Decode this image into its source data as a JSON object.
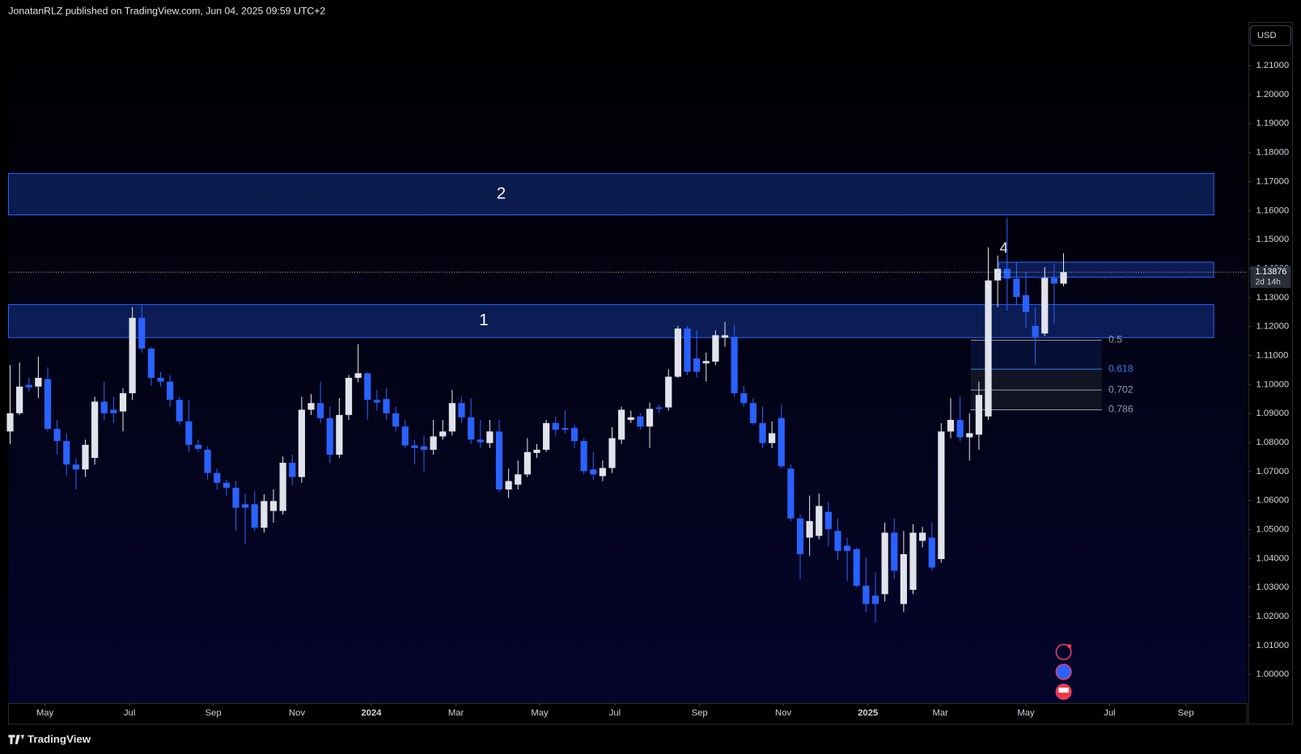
{
  "header": {
    "publisher": "JonatanRLZ published on TradingView.com, Jun 04, 2025 09:59 UTC+2"
  },
  "footer": {
    "brand": "TradingView"
  },
  "chart_data": {
    "type": "candlestick",
    "currency": "USD",
    "up_color": "#e0e3eb",
    "down_color": "#2962ff",
    "open": [
      1.0838,
      1.0901,
      1.0999,
      1.0993,
      1.1019,
      1.0847,
      1.0805,
      1.0724,
      1.0707,
      1.0747,
      1.0941,
      1.0913,
      1.0907,
      1.097,
      1.123,
      1.1124,
      1.1023,
      1.101,
      1.0947,
      1.0873,
      1.0792,
      1.0775,
      1.0695,
      1.0661,
      1.0644,
      1.0587,
      1.0587,
      1.0506,
      1.0564,
      1.0564,
      1.073,
      1.0681,
      1.0913,
      1.0936,
      1.0884,
      1.0758,
      1.0895,
      1.1023,
      1.1039,
      1.0947,
      1.095,
      1.0901,
      1.0855,
      1.079,
      1.0787,
      1.0775,
      1.0821,
      1.0838,
      1.0936,
      1.0887,
      1.081,
      1.0798,
      1.0838,
      1.0638,
      1.0655,
      1.069,
      1.0764,
      1.0775,
      1.0867,
      1.085,
      1.085,
      1.0805,
      1.0707,
      1.0684,
      1.0712,
      1.081,
      1.0878,
      1.089,
      1.0855,
      1.0921,
      1.0921,
      1.1027,
      1.1193,
      1.109,
      1.1073,
      1.1079,
      1.1162,
      1.1164,
      1.097,
      1.0936,
      1.0867,
      1.0798,
      1.0884,
      1.071,
      1.0538,
      1.0472,
      1.0478,
      1.0561,
      1.0495,
      1.0444,
      1.0432,
      1.0306,
      1.0272,
      1.0277,
      1.0489,
      1.0243,
      1.0292,
      1.0461,
      1.0472,
      1.0398,
      1.0838,
      1.0878,
      1.0818,
      1.0827,
      1.089,
      1.1359,
      1.1399,
      1.1365,
      1.1308,
      1.1202,
      1.1176,
      1.1368,
      1.1348
    ],
    "high": [
      1.1067,
      1.1076,
      1.1024,
      1.1096,
      1.1059,
      1.0878,
      1.0832,
      1.0747,
      1.081,
      1.0958,
      1.101,
      1.0958,
      1.0987,
      1.1267,
      1.1276,
      1.113,
      1.1044,
      1.1033,
      1.0958,
      1.0947,
      1.081,
      1.0787,
      1.071,
      1.0672,
      1.0667,
      1.0624,
      1.0632,
      1.0621,
      1.0638,
      1.0752,
      1.0758,
      1.0958,
      1.0967,
      1.101,
      1.0924,
      1.0953,
      1.1033,
      1.1139,
      1.1044,
      1.0981,
      1.0987,
      1.0924,
      1.0878,
      1.081,
      1.0824,
      1.0878,
      1.0878,
      1.0981,
      1.0958,
      1.0953,
      1.0878,
      1.0878,
      1.0878,
      1.071,
      1.0738,
      1.0815,
      1.0795,
      1.0878,
      1.089,
      1.091,
      1.0861,
      1.0815,
      1.0767,
      1.0738,
      1.0853,
      1.0924,
      1.091,
      1.0901,
      1.0938,
      1.093,
      1.1053,
      1.1202,
      1.1202,
      1.1187,
      1.111,
      1.1187,
      1.1216,
      1.1205,
      1.0996,
      1.0953,
      1.0924,
      1.0873,
      1.093,
      1.0724,
      1.0552,
      1.0617,
      1.0624,
      1.0595,
      1.0538,
      1.0472,
      1.0438,
      1.0403,
      1.0352,
      1.0524,
      1.0538,
      1.0495,
      1.0518,
      1.0509,
      1.0524,
      1.0867,
      1.0953,
      1.0958,
      1.0901,
      1.101,
      1.1473,
      1.1445,
      1.1574,
      1.1422,
      1.1388,
      1.1267,
      1.1405,
      1.1416,
      1.1453
    ],
    "low": [
      1.0795,
      1.0895,
      1.0976,
      1.0953,
      1.0838,
      1.0758,
      1.0684,
      1.0638,
      1.0681,
      1.0724,
      1.0878,
      1.0867,
      1.0838,
      1.0947,
      1.111,
      1.0996,
      1.0993,
      1.0924,
      1.0861,
      1.0767,
      1.0767,
      1.0672,
      1.0638,
      1.0617,
      1.0495,
      1.0449,
      1.0495,
      1.0489,
      1.0524,
      1.0552,
      1.0652,
      1.0661,
      1.0895,
      1.0867,
      1.073,
      1.0747,
      1.0878,
      1.1008,
      1.0878,
      1.091,
      1.0878,
      1.0838,
      1.0781,
      1.0724,
      1.0701,
      1.0758,
      1.081,
      1.0824,
      1.0867,
      1.0795,
      1.0781,
      1.0781,
      1.0629,
      1.0609,
      1.0638,
      1.0681,
      1.0747,
      1.0767,
      1.0824,
      1.0832,
      1.0781,
      1.069,
      1.0672,
      1.0667,
      1.0695,
      1.0795,
      1.0867,
      1.0844,
      1.0781,
      1.0901,
      1.091,
      1.1023,
      1.1033,
      1.1024,
      1.101,
      1.1067,
      1.113,
      1.0958,
      1.0924,
      1.0861,
      1.0781,
      1.0781,
      1.071,
      1.0529,
      1.0329,
      1.0409,
      1.0466,
      1.0444,
      1.0395,
      1.0323,
      1.03,
      1.0215,
      1.018,
      1.0252,
      1.0329,
      1.0215,
      1.0277,
      1.0438,
      1.0358,
      1.0386,
      1.0815,
      1.0805,
      1.0738,
      1.0775,
      1.0878,
      1.1267,
      1.1255,
      1.1273,
      1.1196,
      1.1067,
      1.1167,
      1.121,
      1.1339
    ],
    "close": [
      1.0901,
      1.0993,
      1.099,
      1.1023,
      1.0847,
      1.0805,
      1.0724,
      1.0707,
      1.0792,
      1.0941,
      1.0901,
      1.0901,
      1.097,
      1.123,
      1.1124,
      1.1023,
      1.101,
      1.0947,
      1.0873,
      1.0792,
      1.0778,
      1.0695,
      1.0661,
      1.0644,
      1.0575,
      1.0575,
      1.0506,
      1.0598,
      1.0598,
      1.073,
      1.0681,
      1.0913,
      1.0936,
      1.0884,
      1.0758,
      1.0895,
      1.1023,
      1.1039,
      1.0947,
      1.0938,
      1.0901,
      1.0855,
      1.079,
      1.0781,
      1.0775,
      1.0821,
      1.0838,
      1.0936,
      1.0887,
      1.081,
      1.0801,
      1.0838,
      1.0638,
      1.0667,
      1.069,
      1.0767,
      1.0775,
      1.0867,
      1.0844,
      1.0844,
      1.0805,
      1.0701,
      1.069,
      1.0712,
      1.0815,
      1.0913,
      1.0887,
      1.0855,
      1.0916,
      1.0916,
      1.1027,
      1.1193,
      1.1044,
      1.1044,
      1.1081,
      1.117,
      1.117,
      1.097,
      1.0936,
      1.0867,
      1.0798,
      1.0832,
      1.0718,
      1.0538,
      1.0415,
      1.0529,
      1.0581,
      1.0501,
      1.0426,
      1.0426,
      1.0306,
      1.0243,
      1.0243,
      1.0489,
      1.0358,
      1.0415,
      1.0489,
      1.0489,
      1.0369,
      1.0838,
      1.0878,
      1.0818,
      1.0832,
      1.0964,
      1.1359,
      1.1399,
      1.1365,
      1.1302,
      1.125,
      1.1164,
      1.1368,
      1.1348,
      1.1388
    ],
    "xlim": [
      -0.18,
      131.5
    ],
    "ylim": [
      0.9903,
      1.2249
    ],
    "xticks": [
      {
        "value": 3.7,
        "label": "May"
      },
      {
        "value": 12.7,
        "label": "Jul"
      },
      {
        "value": 21.6,
        "label": "Sep"
      },
      {
        "value": 30.5,
        "label": "Nov"
      },
      {
        "value": 38.4,
        "label": "2024"
      },
      {
        "value": 47.4,
        "label": "Mar"
      },
      {
        "value": 56.3,
        "label": "May"
      },
      {
        "value": 64.3,
        "label": "Jul"
      },
      {
        "value": 73.3,
        "label": "Sep"
      },
      {
        "value": 82.2,
        "label": "Nov"
      },
      {
        "value": 91.2,
        "label": "2025"
      },
      {
        "value": 98.9,
        "label": "Mar"
      },
      {
        "value": 108.0,
        "label": "May"
      },
      {
        "value": 116.9,
        "label": "Jul"
      },
      {
        "value": 125.0,
        "label": "Sep"
      }
    ],
    "yticks": [
      {
        "value": 1.0,
        "label": "1.00000"
      },
      {
        "value": 1.01,
        "label": "1.01000"
      },
      {
        "value": 1.02,
        "label": "1.02000"
      },
      {
        "value": 1.03,
        "label": "1.03000"
      },
      {
        "value": 1.04,
        "label": "1.04000"
      },
      {
        "value": 1.05,
        "label": "1.05000"
      },
      {
        "value": 1.06,
        "label": "1.06000"
      },
      {
        "value": 1.07,
        "label": "1.07000"
      },
      {
        "value": 1.08,
        "label": "1.08000"
      },
      {
        "value": 1.09,
        "label": "1.09000"
      },
      {
        "value": 1.1,
        "label": "1.10000"
      },
      {
        "value": 1.11,
        "label": "1.11000"
      },
      {
        "value": 1.12,
        "label": "1.12000"
      },
      {
        "value": 1.13,
        "label": "1.13000"
      },
      {
        "value": 1.14,
        "label": "1.14000"
      },
      {
        "value": 1.15,
        "label": "1.15000"
      },
      {
        "value": 1.16,
        "label": "1.16000"
      },
      {
        "value": 1.17,
        "label": "1.17000"
      },
      {
        "value": 1.18,
        "label": "1.18000"
      },
      {
        "value": 1.19,
        "label": "1.19000"
      },
      {
        "value": 1.2,
        "label": "1.20000"
      },
      {
        "value": 1.21,
        "label": "1.21000"
      }
    ],
    "last_price": 1.13876,
    "countdown": "2d 14h",
    "zone_color": "#2962ff",
    "zones": [
      {
        "label": "2",
        "top": 1.1728,
        "bottom": 1.1585
      },
      {
        "label": "1",
        "top": 1.1276,
        "bottom": 1.1162
      },
      {
        "top": 1.1422,
        "bottom": 1.137
      }
    ],
    "annotation": "4",
    "fib_levels": [
      {
        "ratio": 0.5,
        "price": 1.1153,
        "color": "#9598a1"
      },
      {
        "ratio": 0.618,
        "price": 1.1053,
        "color": "#2f7ff5"
      },
      {
        "ratio": 0.702,
        "price": 1.0981,
        "color": "#9598a1"
      },
      {
        "ratio": 0.786,
        "price": 1.0913,
        "color": "#9598a1"
      }
    ]
  }
}
